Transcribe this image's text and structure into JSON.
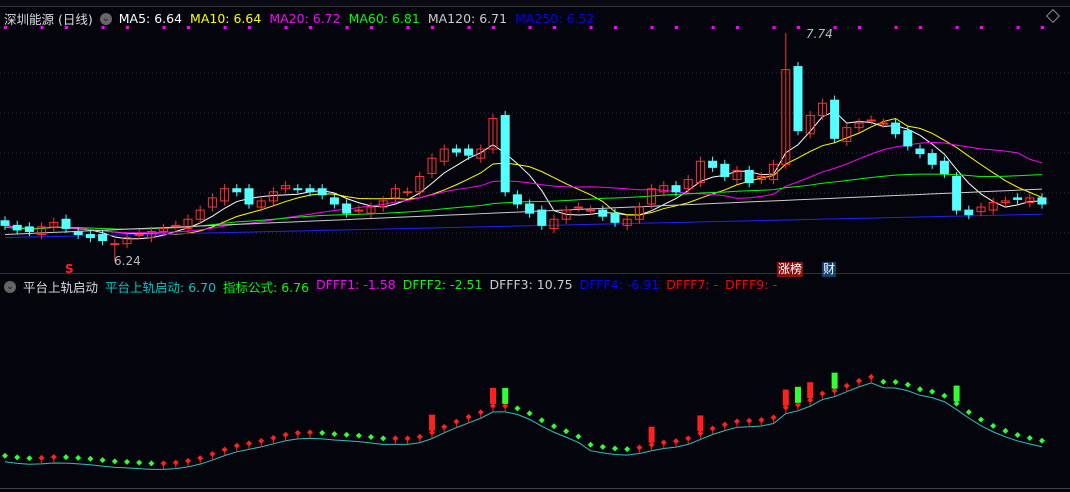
{
  "header": {
    "stock_name": "深圳能源 (日线)",
    "ma": [
      {
        "label": "MA5: 6.64",
        "color": "#ffffff"
      },
      {
        "label": "MA10: 6.64",
        "color": "#ffff00"
      },
      {
        "label": "MA20: 6.72",
        "color": "#ff00ff"
      },
      {
        "label": "MA60: 6.81",
        "color": "#00ff00"
      },
      {
        "label": "MA120: 6.71",
        "color": "#cccccc"
      },
      {
        "label": "MA250: 6.52",
        "color": "#0000ff"
      }
    ]
  },
  "indicator": {
    "name": "平台上轨启动",
    "values": [
      {
        "label": "平台上轨启动: 6.70",
        "color": "#00c8c8"
      },
      {
        "label": "指标公式: 6.76",
        "color": "#00ff00"
      },
      {
        "label": "DFFF1: -1.58",
        "color": "#ff00ff"
      },
      {
        "label": "DFFF2: -2.51",
        "color": "#00ff00"
      },
      {
        "label": "DFFF3: 10.75",
        "color": "#cccccc"
      },
      {
        "label": "DFFF4: -6.91",
        "color": "#0000ff"
      },
      {
        "label": "DFFF7: -",
        "color": "#ff0000"
      },
      {
        "label": "DFFF9: -",
        "color": "#ff0000"
      }
    ]
  },
  "annotations": {
    "high_label": "7.74",
    "low_label": "6.24",
    "signal_mark": "S",
    "badge_zhangbang": "涨榜",
    "badge_cai": "财"
  },
  "colors": {
    "up": "#ff3232",
    "down": "#54ffff",
    "background": "#04040c"
  },
  "chart_data": {
    "type": "candlestick",
    "high": 7.74,
    "low": 6.24,
    "closes": [
      6.48,
      6.45,
      6.44,
      6.47,
      6.5,
      6.46,
      6.42,
      6.4,
      6.38,
      6.36,
      6.4,
      6.42,
      6.44,
      6.46,
      6.48,
      6.52,
      6.58,
      6.66,
      6.72,
      6.7,
      6.62,
      6.64,
      6.7,
      6.74,
      6.72,
      6.7,
      6.68,
      6.62,
      6.56,
      6.58,
      6.6,
      6.64,
      6.72,
      6.7,
      6.8,
      6.92,
      6.98,
      6.96,
      6.94,
      6.98,
      7.18,
      6.7,
      6.62,
      6.56,
      6.48,
      6.52,
      6.58,
      6.6,
      6.58,
      6.54,
      6.5,
      6.52,
      6.6,
      6.72,
      6.74,
      6.7,
      6.78,
      6.9,
      6.86,
      6.8,
      6.84,
      6.76,
      6.8,
      6.88,
      7.5,
      7.1,
      7.2,
      7.28,
      7.05,
      7.12,
      7.15,
      7.17,
      7.15,
      7.08,
      7.0,
      6.95,
      6.88,
      6.82,
      6.58,
      6.55,
      6.6,
      6.63,
      6.64,
      6.65,
      6.66,
      6.62
    ]
  }
}
